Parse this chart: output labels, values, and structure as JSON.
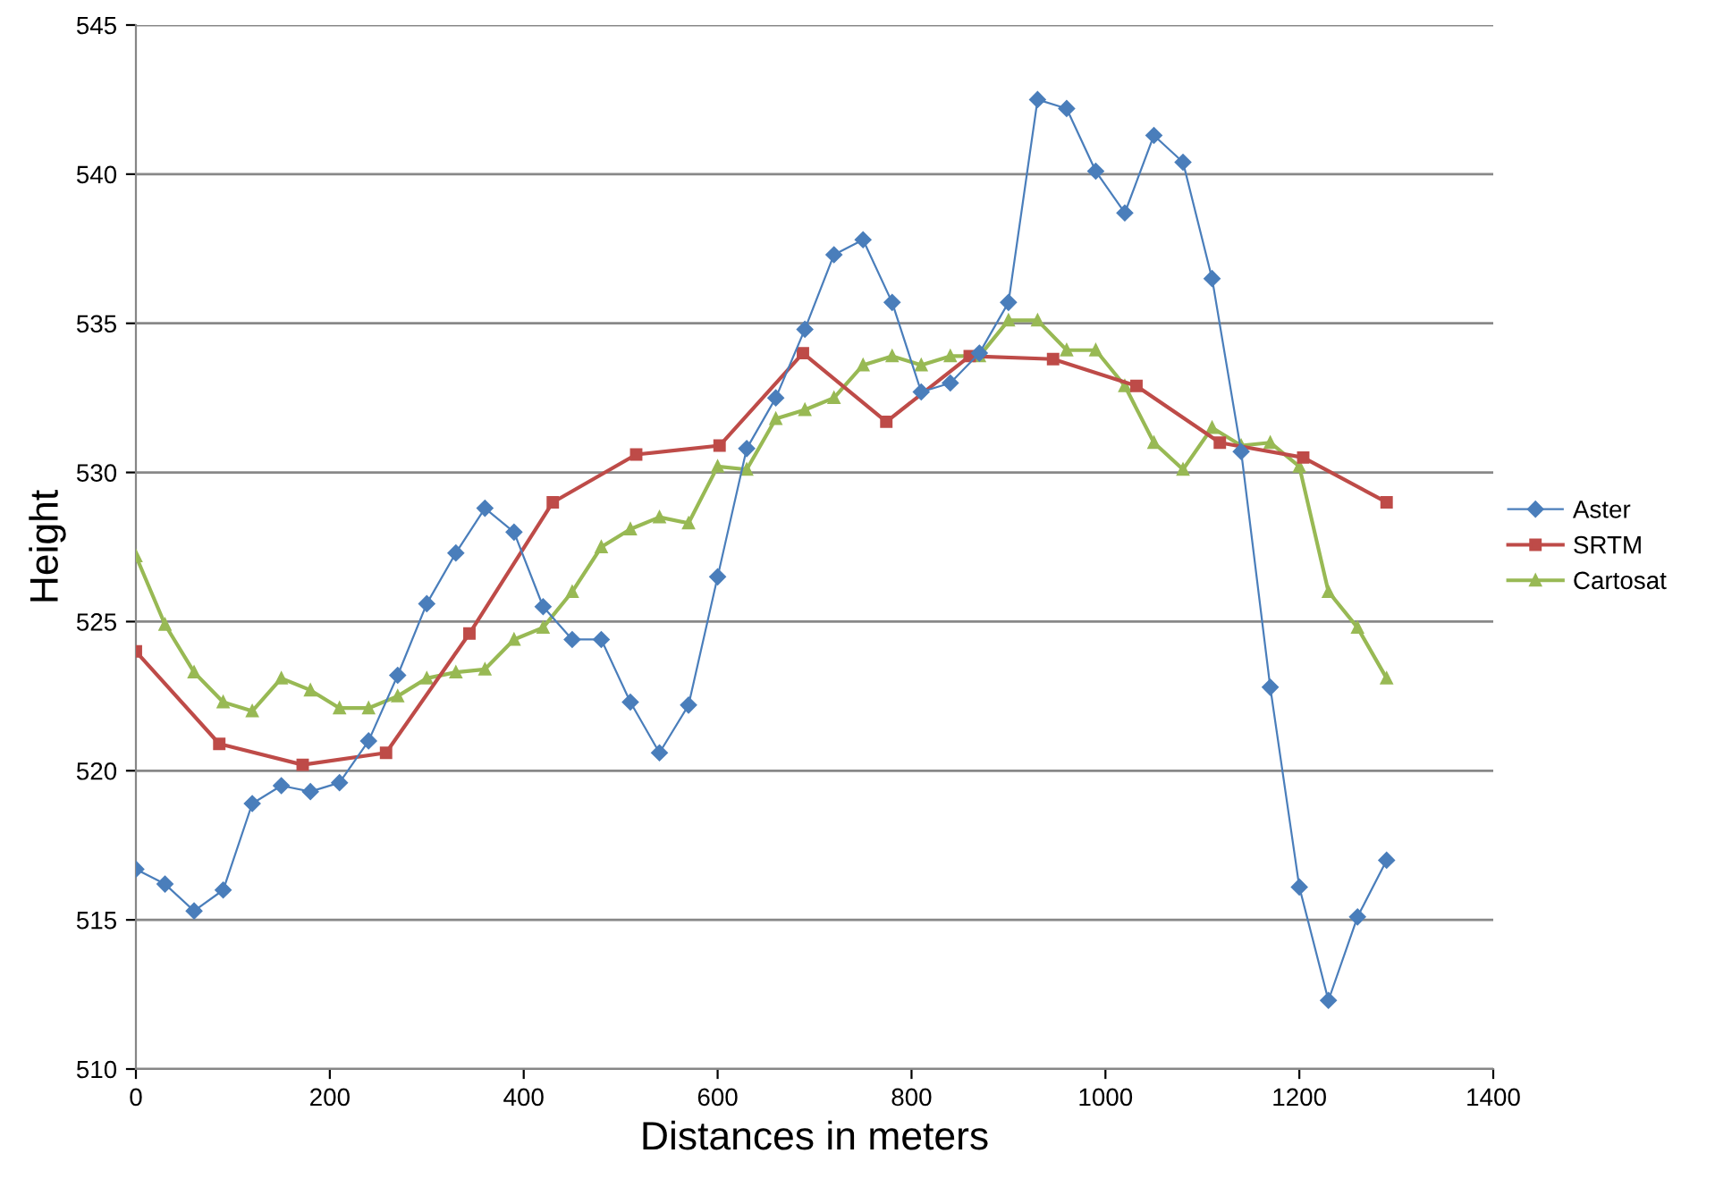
{
  "chart_data": {
    "type": "line",
    "xlabel": "Distances in meters",
    "ylabel": "Height",
    "xlim": [
      0,
      1400
    ],
    "xticks": [
      0,
      200,
      400,
      600,
      800,
      1000,
      1200,
      1400
    ],
    "ylim": [
      510,
      545
    ],
    "yticks": [
      510,
      515,
      520,
      525,
      530,
      535,
      540,
      545
    ],
    "grid": "y",
    "legend": "right",
    "series": [
      {
        "name": "Aster",
        "color": "#4a7ebb",
        "marker": "diamond",
        "x": [
          0,
          30,
          60,
          90,
          120,
          150,
          180,
          210,
          240,
          270,
          300,
          330,
          360,
          390,
          420,
          450,
          480,
          510,
          540,
          570,
          600,
          630,
          660,
          690,
          720,
          750,
          780,
          810,
          840,
          870,
          900,
          930,
          960,
          990,
          1020,
          1050,
          1080,
          1110,
          1140,
          1170,
          1200,
          1230,
          1260,
          1290
        ],
        "values": [
          516.7,
          516.2,
          515.3,
          516.0,
          518.9,
          519.5,
          519.3,
          519.6,
          521.0,
          523.2,
          525.6,
          527.3,
          528.8,
          528.0,
          525.5,
          524.4,
          524.4,
          522.3,
          520.6,
          522.2,
          526.5,
          530.8,
          532.5,
          534.8,
          537.3,
          537.8,
          535.7,
          532.7,
          533.0,
          534.0,
          535.7,
          542.5,
          542.2,
          540.1,
          538.7,
          541.3,
          540.4,
          536.5,
          530.7,
          522.8,
          516.1,
          512.3,
          515.1,
          517.0
        ]
      },
      {
        "name": "SRTM",
        "color": "#be4b48",
        "marker": "square",
        "x": [
          0,
          86,
          172,
          258,
          344,
          430,
          516,
          602,
          688,
          774,
          860,
          946,
          1032,
          1118,
          1204,
          1290
        ],
        "values": [
          524.0,
          520.9,
          520.2,
          520.6,
          524.6,
          529.0,
          530.6,
          530.9,
          534.0,
          531.7,
          533.9,
          533.8,
          532.9,
          531.0,
          530.5,
          529.0
        ]
      },
      {
        "name": "Cartosat",
        "color": "#98b954",
        "marker": "triangle",
        "x": [
          0,
          30,
          60,
          90,
          120,
          150,
          180,
          210,
          240,
          270,
          300,
          330,
          360,
          390,
          420,
          450,
          480,
          510,
          540,
          570,
          600,
          630,
          660,
          690,
          720,
          750,
          780,
          810,
          840,
          870,
          900,
          930,
          960,
          990,
          1020,
          1050,
          1080,
          1110,
          1140,
          1170,
          1200,
          1230,
          1260,
          1290
        ],
        "values": [
          527.2,
          524.9,
          523.3,
          522.3,
          522.0,
          523.1,
          522.7,
          522.1,
          522.1,
          522.5,
          523.1,
          523.3,
          523.4,
          524.4,
          524.8,
          526.0,
          527.5,
          528.1,
          528.5,
          528.3,
          530.2,
          530.1,
          531.8,
          532.1,
          532.5,
          533.6,
          533.9,
          533.6,
          533.9,
          533.9,
          535.1,
          535.1,
          534.1,
          534.1,
          532.9,
          531.0,
          530.1,
          531.5,
          530.9,
          531.0,
          530.2,
          526.0,
          524.8,
          523.1
        ]
      }
    ]
  }
}
